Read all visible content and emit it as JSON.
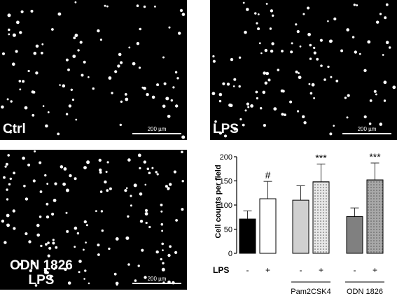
{
  "panels": {
    "ctrl": {
      "label": "Ctrl",
      "scale": "200 µm"
    },
    "lps": {
      "label": "LPS",
      "scale": "200 µm"
    },
    "odn": {
      "label_line1": "ODN 1826",
      "label_line2": "LPS",
      "scale": "200 µm"
    }
  },
  "colors": {
    "background_micrograph": "#000000",
    "cell_dot": "#ffffff",
    "bar_ctrl": "#000000",
    "bar_lps": "#ffffff",
    "bar_pam": "#d0d0d0",
    "bar_pam_lps": "#e8e8e8",
    "bar_odn": "#808080",
    "bar_odn_lps": "#a8a8a8"
  },
  "chart_data": {
    "type": "bar",
    "ylabel": "Cell counts per field",
    "ylim": [
      0,
      200
    ],
    "yticks": [
      0,
      50,
      100,
      150,
      200
    ],
    "row_label": "LPS",
    "bars": [
      {
        "lps": "-",
        "value": 71,
        "error": 17,
        "fill": "#000000",
        "pattern": "none",
        "annotation": ""
      },
      {
        "lps": "+",
        "value": 113,
        "error": 36,
        "fill": "#ffffff",
        "pattern": "none",
        "annotation": "#"
      },
      {
        "lps": "-",
        "value": 110,
        "error": 30,
        "fill": "#d0d0d0",
        "pattern": "none",
        "annotation": ""
      },
      {
        "lps": "+",
        "value": 148,
        "error": 37,
        "fill": "#e8e8e8",
        "pattern": "dots",
        "annotation": "***"
      },
      {
        "lps": "-",
        "value": 76,
        "error": 18,
        "fill": "#808080",
        "pattern": "none",
        "annotation": ""
      },
      {
        "lps": "+",
        "value": 152,
        "error": 35,
        "fill": "#a8a8a8",
        "pattern": "dots",
        "annotation": "***"
      }
    ],
    "groups": [
      {
        "label": "Pam2CSK4",
        "bars": [
          2,
          3
        ]
      },
      {
        "label": "ODN 1826",
        "bars": [
          4,
          5
        ]
      }
    ],
    "grid": false
  }
}
